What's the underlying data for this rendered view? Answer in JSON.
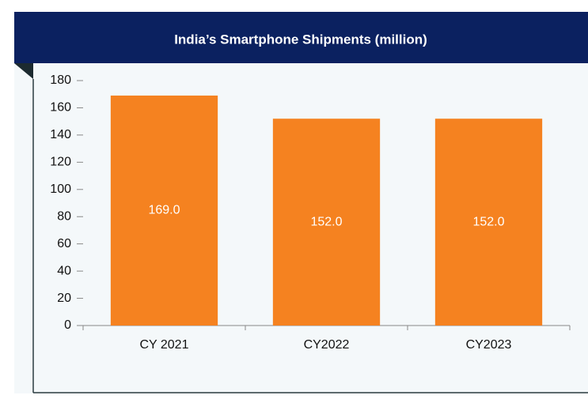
{
  "chart_data": {
    "type": "bar",
    "title": "India’s Smartphone Shipments (million)",
    "categories": [
      "CY 2021",
      "CY2022",
      "CY2023"
    ],
    "values": [
      169,
      152,
      152
    ],
    "value_labels": [
      "169.0",
      "152.0",
      "152.0"
    ],
    "color": "#f58220",
    "ylim": [
      0,
      180
    ],
    "yticks": [
      0,
      20,
      40,
      60,
      80,
      100,
      120,
      140,
      160,
      180
    ],
    "grid": false
  }
}
